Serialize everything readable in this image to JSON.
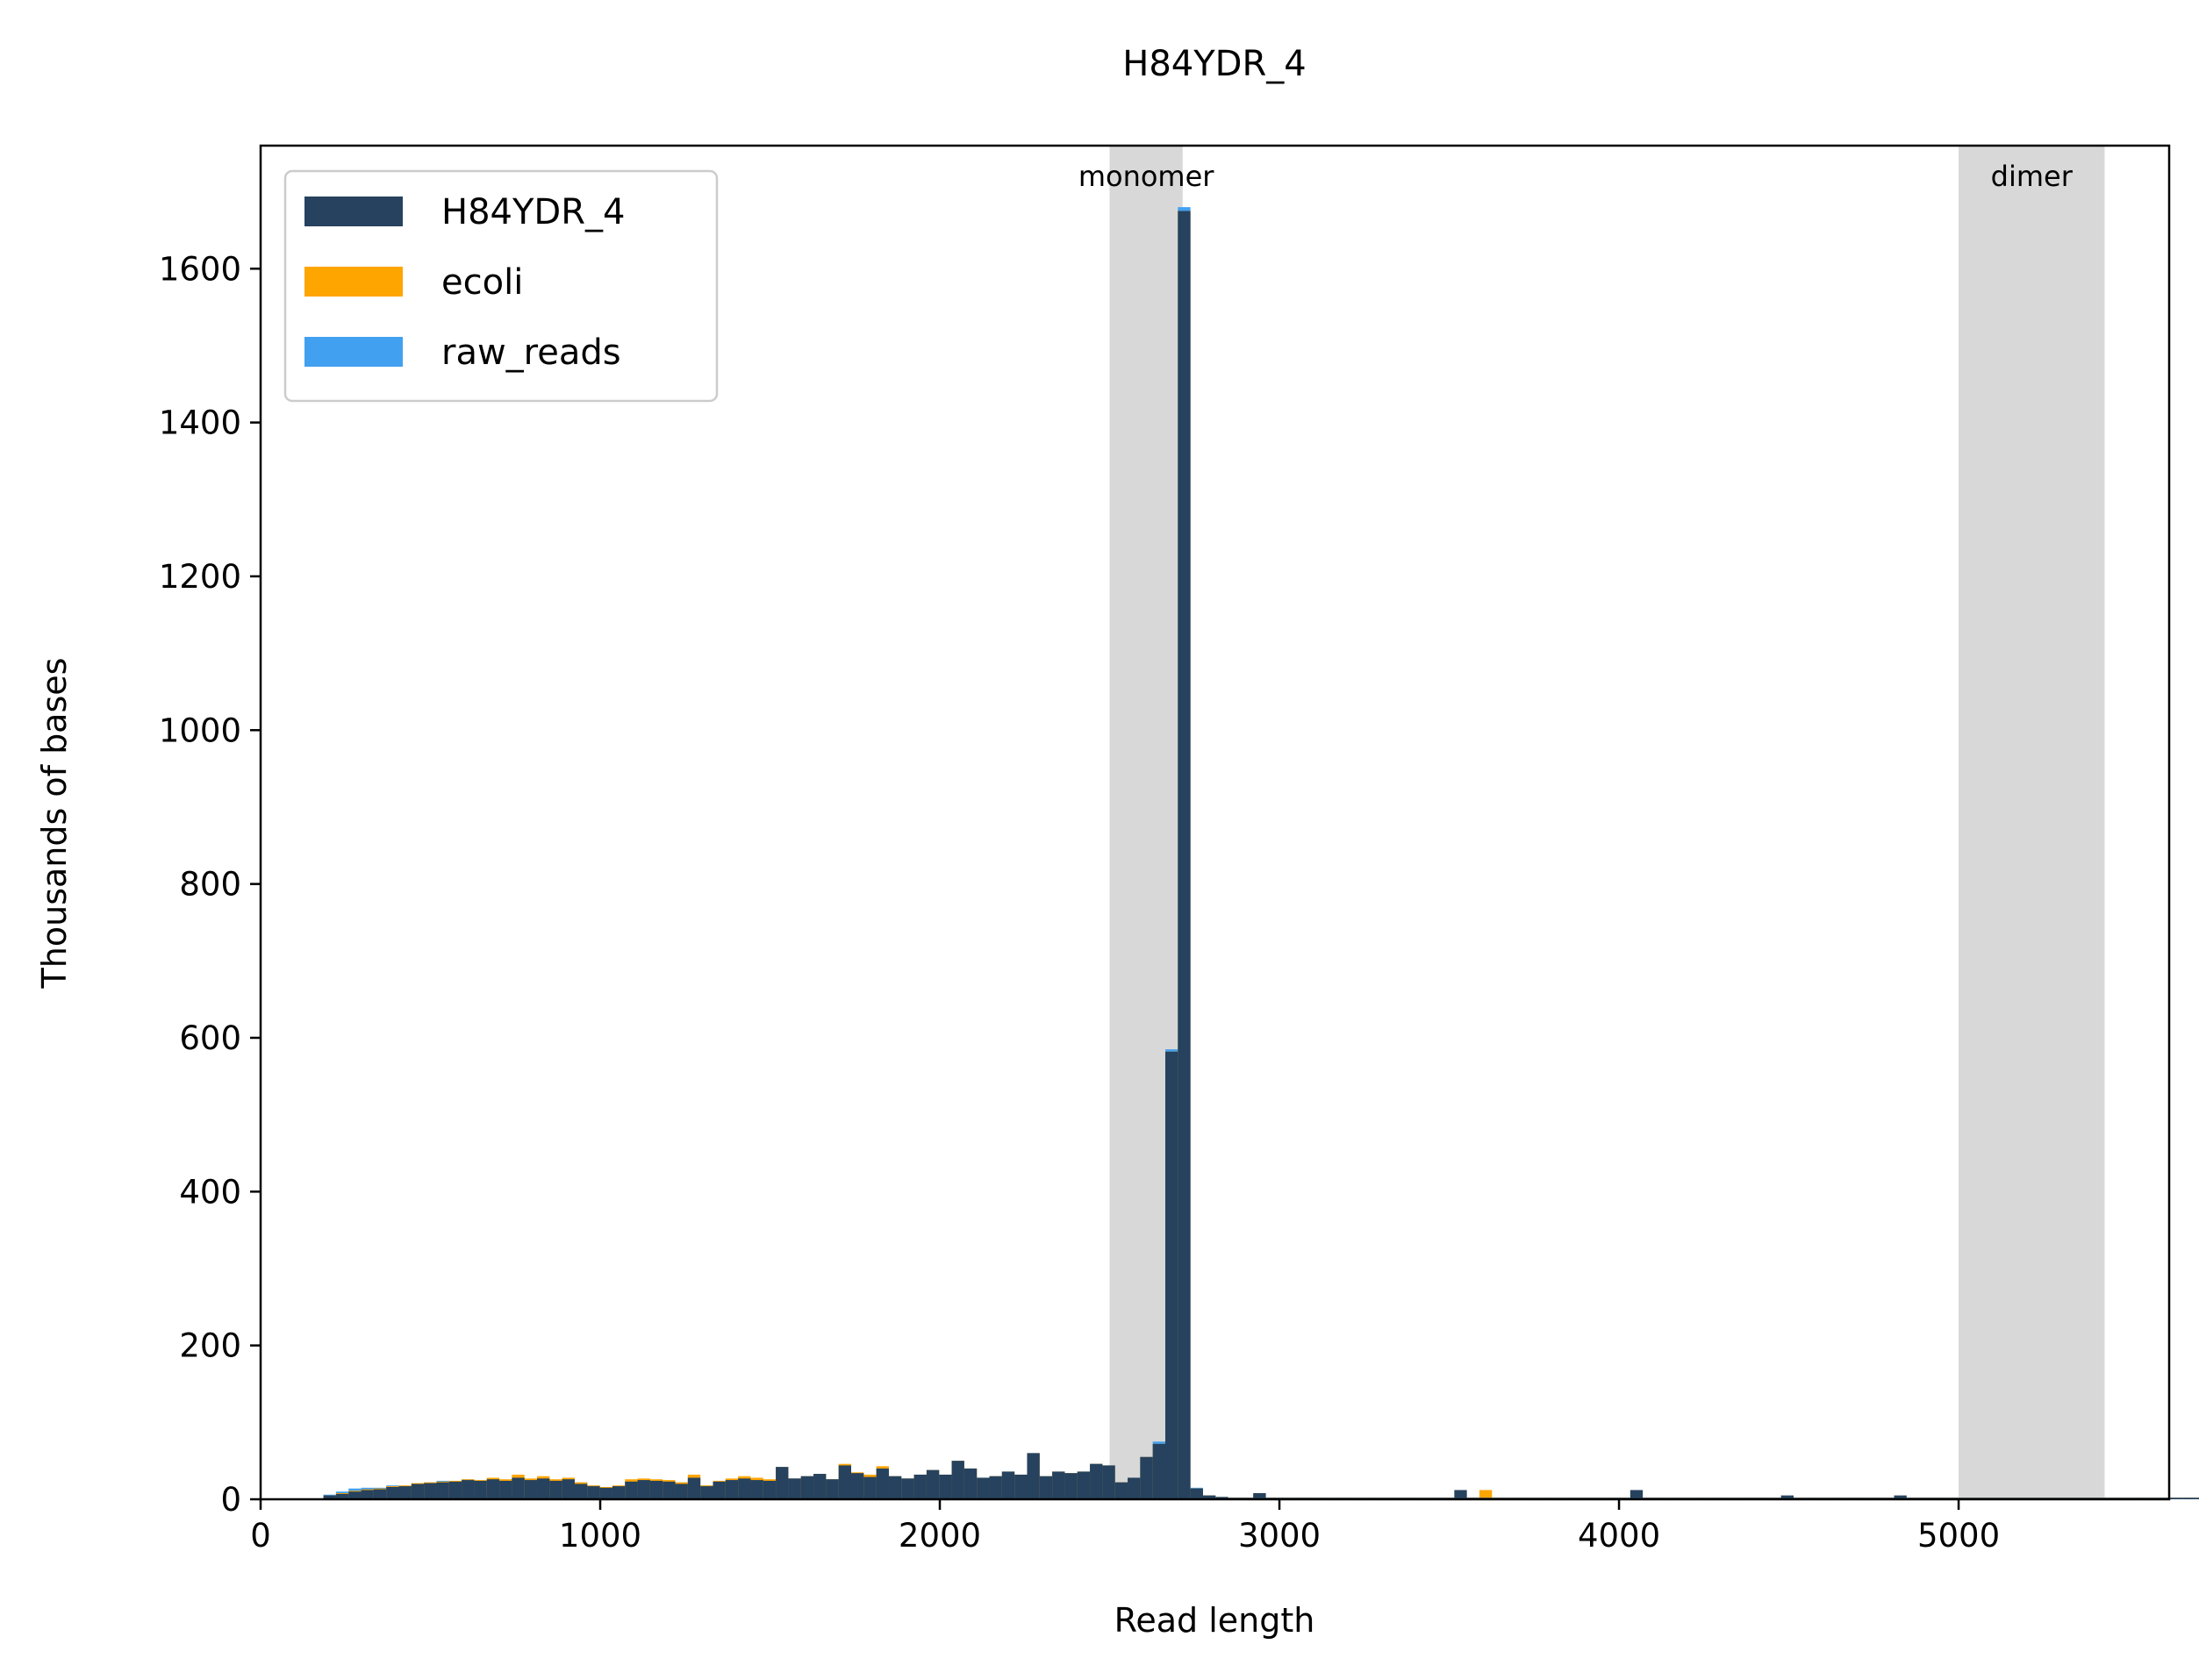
{
  "chart_data": {
    "type": "bar",
    "title": "H84YDR_4",
    "xlabel": "Read length",
    "ylabel": "Thousands of bases",
    "xlim": [
      0,
      5620
    ],
    "ylim": [
      0,
      1760
    ],
    "xticks": [
      0,
      1000,
      2000,
      3000,
      4000,
      5000
    ],
    "yticks": [
      0,
      200,
      400,
      600,
      800,
      1000,
      1200,
      1400,
      1600
    ],
    "bin_width": 37,
    "bin_start": 185,
    "grid": false,
    "legend_position": "top-left",
    "bands": [
      {
        "label": "monomer",
        "x0": 2500,
        "x1": 2715
      },
      {
        "label": "dimer",
        "x0": 5000,
        "x1": 5430
      }
    ],
    "series": [
      {
        "name": "raw_reads",
        "color": "#42a0f0",
        "values": [
          6,
          10,
          14,
          15,
          15,
          18,
          17,
          20,
          22,
          24,
          24,
          26,
          24,
          26,
          25,
          28,
          25,
          27,
          24,
          27,
          22,
          18,
          16,
          17,
          24,
          26,
          25,
          24,
          22,
          28,
          18,
          24,
          26,
          27,
          26,
          25,
          42,
          27,
          30,
          33,
          26,
          45,
          34,
          29,
          40,
          30,
          27,
          32,
          38,
          32,
          50,
          40,
          28,
          30,
          36,
          32,
          60,
          30,
          36,
          34,
          36,
          46,
          44,
          22,
          28,
          55,
          75,
          585,
          1680,
          15,
          5,
          3,
          2,
          2,
          8,
          2,
          2,
          2,
          2,
          2,
          2,
          2,
          2,
          2,
          2,
          2,
          2,
          2,
          2,
          2,
          2,
          2,
          2,
          2,
          2,
          2,
          2,
          2,
          2,
          2,
          2,
          2,
          2,
          2,
          2,
          2,
          2,
          2,
          2,
          2,
          2,
          2,
          2,
          2,
          2,
          2,
          2,
          2,
          2,
          2,
          2,
          2,
          2,
          2,
          2,
          2,
          2,
          2,
          2,
          2,
          2,
          2,
          2,
          2,
          2,
          2,
          2,
          2,
          2,
          2,
          2,
          2,
          2,
          2,
          2,
          2,
          2,
          2,
          2,
          2,
          2,
          2,
          2,
          2,
          2,
          2,
          2,
          2,
          2,
          2,
          2,
          2,
          2,
          2,
          2,
          2,
          2,
          2,
          2,
          2,
          2,
          2,
          2,
          2,
          2,
          2,
          2,
          2,
          2,
          2,
          2,
          2,
          2,
          2,
          2,
          2,
          2,
          2,
          2,
          2,
          2,
          2,
          2,
          2,
          2,
          2,
          2,
          2,
          2,
          2,
          2,
          2,
          2,
          2,
          2,
          2,
          2,
          2,
          2,
          2,
          2,
          2,
          2,
          2,
          2,
          2,
          2,
          2,
          2,
          2,
          2,
          2,
          2,
          2,
          2,
          2,
          2,
          2,
          2,
          2,
          2,
          2,
          2,
          2,
          2,
          2,
          2,
          2,
          2,
          2,
          2,
          2,
          2,
          2,
          2,
          2,
          2,
          2,
          2,
          2,
          2,
          2,
          2,
          2,
          2,
          2,
          2,
          2,
          2,
          2,
          2,
          2,
          2,
          2,
          2,
          2,
          2,
          2,
          2,
          2,
          2,
          2,
          2,
          2,
          2,
          2,
          2,
          2,
          2,
          2,
          2,
          2,
          2,
          2,
          2,
          2,
          2,
          2,
          2,
          2,
          2,
          2,
          2,
          2,
          2,
          2,
          2,
          2,
          2,
          2,
          2,
          2,
          2,
          2,
          2,
          2,
          2,
          2,
          2,
          2,
          2,
          2,
          2,
          2,
          2,
          2,
          2,
          2,
          2,
          2,
          2,
          2,
          2,
          2,
          2,
          2,
          2,
          2,
          2,
          2,
          2,
          2,
          2,
          2,
          2,
          2,
          2,
          2,
          2,
          2,
          2,
          2,
          2,
          2,
          2,
          2,
          2,
          2,
          2,
          2,
          2,
          2,
          2,
          2,
          2,
          2,
          2,
          2,
          2,
          2,
          2,
          2,
          2,
          2,
          2,
          2,
          2,
          2,
          2,
          2,
          2,
          2,
          2,
          2,
          2,
          2,
          2,
          2,
          2,
          2,
          2,
          2,
          2,
          2,
          2,
          2,
          2,
          2,
          2,
          2,
          2,
          2,
          2,
          2,
          2,
          2,
          2,
          2,
          2,
          2,
          2,
          2,
          2,
          2,
          2,
          2,
          2,
          2,
          2,
          2,
          2
        ]
      },
      {
        "name": "ecoli",
        "color": "#ffa500",
        "values": [
          5,
          8,
          11,
          13,
          14,
          17,
          18,
          21,
          22,
          23,
          24,
          26,
          25,
          28,
          26,
          32,
          27,
          30,
          26,
          28,
          22,
          18,
          16,
          18,
          26,
          27,
          26,
          25,
          22,
          32,
          18,
          24,
          27,
          30,
          28,
          26,
          42,
          27,
          30,
          33,
          26,
          46,
          35,
          32,
          43,
          30,
          27,
          32,
          38,
          32,
          50,
          40,
          28,
          30,
          36,
          32,
          60,
          30,
          36,
          34,
          36,
          46,
          44,
          22,
          28,
          55,
          72,
          582,
          1675,
          14,
          5,
          3,
          2,
          2,
          8,
          2,
          2,
          2,
          2,
          2,
          2,
          2,
          2,
          2,
          2,
          2,
          2,
          2,
          2,
          2,
          2,
          2,
          12,
          2,
          2,
          2,
          2,
          2,
          2,
          2,
          2,
          2,
          2,
          2,
          2,
          2,
          2,
          2,
          2,
          2,
          2,
          2,
          2,
          2,
          2,
          2,
          2,
          2,
          2,
          2,
          2,
          2,
          2,
          2,
          2,
          2,
          2,
          2,
          2,
          2,
          2,
          2,
          2,
          2,
          2,
          2,
          2,
          2,
          2,
          2,
          2,
          2,
          2,
          2,
          2,
          2,
          2,
          2,
          2,
          2,
          2,
          2,
          2,
          2,
          2,
          2,
          2,
          2,
          2,
          2,
          2,
          2,
          2,
          2,
          2,
          2,
          2,
          2,
          2,
          2,
          2,
          2,
          2,
          2,
          2,
          2,
          2,
          2,
          2,
          2,
          2,
          2,
          2,
          2,
          2,
          2,
          2,
          2,
          2,
          2,
          2,
          2,
          2,
          2,
          2,
          2,
          2,
          2,
          2,
          2,
          2,
          2,
          2,
          2,
          2,
          2,
          2,
          2,
          2,
          2,
          2,
          2,
          2,
          2,
          2,
          2,
          2,
          2,
          2,
          2,
          2,
          2,
          2,
          2,
          2,
          2,
          2,
          2,
          2,
          2,
          2,
          2,
          2,
          2,
          2,
          2,
          2,
          2,
          2,
          2,
          2,
          2,
          2,
          2,
          2,
          2,
          2,
          2,
          2,
          2,
          2,
          2,
          2,
          2,
          2,
          2,
          2,
          2,
          2,
          2,
          2,
          2,
          2,
          2,
          2,
          2,
          2,
          2,
          2,
          2,
          2,
          2,
          2,
          2,
          2,
          2,
          2,
          2,
          2,
          2,
          2,
          2,
          2,
          2,
          2,
          2,
          2,
          2,
          2,
          2,
          2,
          2,
          2,
          2,
          2,
          2,
          2,
          2,
          2,
          2,
          2,
          2,
          2,
          2,
          2,
          2,
          2,
          2,
          2,
          2,
          2,
          2,
          2,
          2,
          2,
          2,
          2,
          2,
          2,
          2,
          2,
          2,
          2,
          2,
          2,
          2,
          2,
          2,
          2,
          2,
          2,
          2,
          2,
          2,
          2,
          2,
          2,
          2,
          2,
          2,
          2,
          2,
          2,
          2,
          2,
          2,
          2,
          2,
          2,
          2,
          2,
          2,
          2,
          2,
          2,
          2,
          2,
          2,
          2,
          2,
          2,
          2,
          2,
          2,
          2,
          2,
          2,
          2,
          2,
          2,
          2,
          2,
          2,
          2,
          2,
          2,
          2,
          2,
          2,
          2,
          2,
          2,
          2,
          2,
          2,
          2,
          2,
          2,
          2,
          2,
          2,
          2,
          2,
          2,
          2,
          2,
          2,
          2,
          2,
          2,
          2,
          2,
          2,
          2,
          2,
          2,
          2,
          2
        ]
      },
      {
        "name": "H84YDR_4",
        "color": "#26425e",
        "values": [
          5,
          7,
          10,
          12,
          13,
          16,
          17,
          20,
          21,
          22,
          23,
          25,
          24,
          26,
          24,
          28,
          25,
          27,
          24,
          26,
          20,
          17,
          15,
          17,
          23,
          25,
          24,
          23,
          20,
          28,
          17,
          23,
          25,
          27,
          25,
          24,
          42,
          27,
          30,
          33,
          26,
          44,
          34,
          29,
          40,
          30,
          27,
          32,
          38,
          32,
          50,
          40,
          28,
          30,
          36,
          32,
          60,
          30,
          36,
          34,
          36,
          46,
          44,
          22,
          28,
          55,
          72,
          582,
          1675,
          14,
          5,
          3,
          2,
          2,
          8,
          2,
          2,
          2,
          2,
          2,
          2,
          2,
          2,
          2,
          2,
          2,
          2,
          2,
          2,
          2,
          12,
          2,
          2,
          2,
          2,
          2,
          2,
          2,
          2,
          2,
          2,
          2,
          2,
          2,
          12,
          2,
          2,
          2,
          2,
          2,
          2,
          2,
          2,
          2,
          2,
          2,
          5,
          2,
          2,
          2,
          2,
          2,
          2,
          2,
          2,
          5,
          2,
          2,
          2,
          2,
          2,
          2,
          2,
          2,
          2,
          2,
          2,
          2,
          2,
          2,
          2,
          2,
          2,
          2,
          2,
          2,
          2,
          2,
          2,
          2,
          2,
          2,
          2,
          2,
          2,
          2,
          2,
          2,
          2,
          2,
          2,
          2,
          2,
          2,
          2,
          2,
          2,
          2,
          2,
          2,
          2,
          2,
          2,
          2,
          2,
          2,
          2,
          2,
          2,
          2,
          2,
          2,
          2,
          2,
          2,
          2,
          2,
          2,
          2,
          2,
          2,
          2,
          2,
          2,
          2,
          2,
          2,
          2,
          2,
          2,
          2,
          2,
          2,
          2,
          2,
          2,
          2,
          2,
          2,
          2,
          2,
          2,
          2,
          2,
          2,
          2,
          2,
          2,
          2,
          2,
          2,
          2,
          2,
          2,
          2,
          2,
          2,
          2,
          2,
          2,
          2,
          2,
          2,
          2,
          2,
          2,
          2,
          2,
          2,
          2,
          2,
          2,
          2,
          2,
          2,
          2,
          2,
          2,
          2,
          2,
          2,
          2,
          2,
          2,
          2,
          2,
          2,
          2,
          2,
          2,
          2,
          2,
          2,
          2,
          2,
          2,
          2,
          2,
          2,
          2,
          2,
          2,
          2,
          2,
          2,
          2,
          2,
          2,
          2,
          2,
          2,
          2,
          2,
          2,
          2,
          2,
          2,
          2,
          2,
          2,
          2,
          2,
          2,
          2,
          2,
          2,
          2,
          2,
          2,
          2,
          2,
          2,
          2,
          2,
          2,
          2,
          2,
          2,
          2,
          2,
          2,
          2,
          2,
          2,
          2,
          2,
          2,
          2,
          2,
          2,
          2,
          2,
          2,
          2,
          2,
          2,
          2,
          2,
          2,
          2,
          2,
          2,
          2,
          2,
          2,
          2,
          2,
          2,
          2,
          2,
          2,
          2,
          2,
          2,
          2,
          2,
          2,
          2,
          2,
          2,
          2,
          2,
          2,
          2,
          2,
          2,
          2,
          2,
          2,
          2,
          2,
          2,
          2,
          2,
          2,
          2,
          2,
          2,
          2,
          2,
          2,
          2,
          2,
          2,
          2,
          2,
          2,
          2,
          2,
          2,
          2,
          2,
          2,
          2,
          2,
          2,
          2,
          2,
          2,
          2,
          2,
          2,
          2,
          2,
          2,
          2,
          2,
          2,
          2,
          2,
          2,
          2,
          2,
          2,
          2,
          2,
          2,
          2,
          2,
          2,
          2,
          2,
          2,
          2
        ]
      }
    ],
    "legend_order": [
      "H84YDR_4",
      "ecoli",
      "raw_reads"
    ]
  }
}
